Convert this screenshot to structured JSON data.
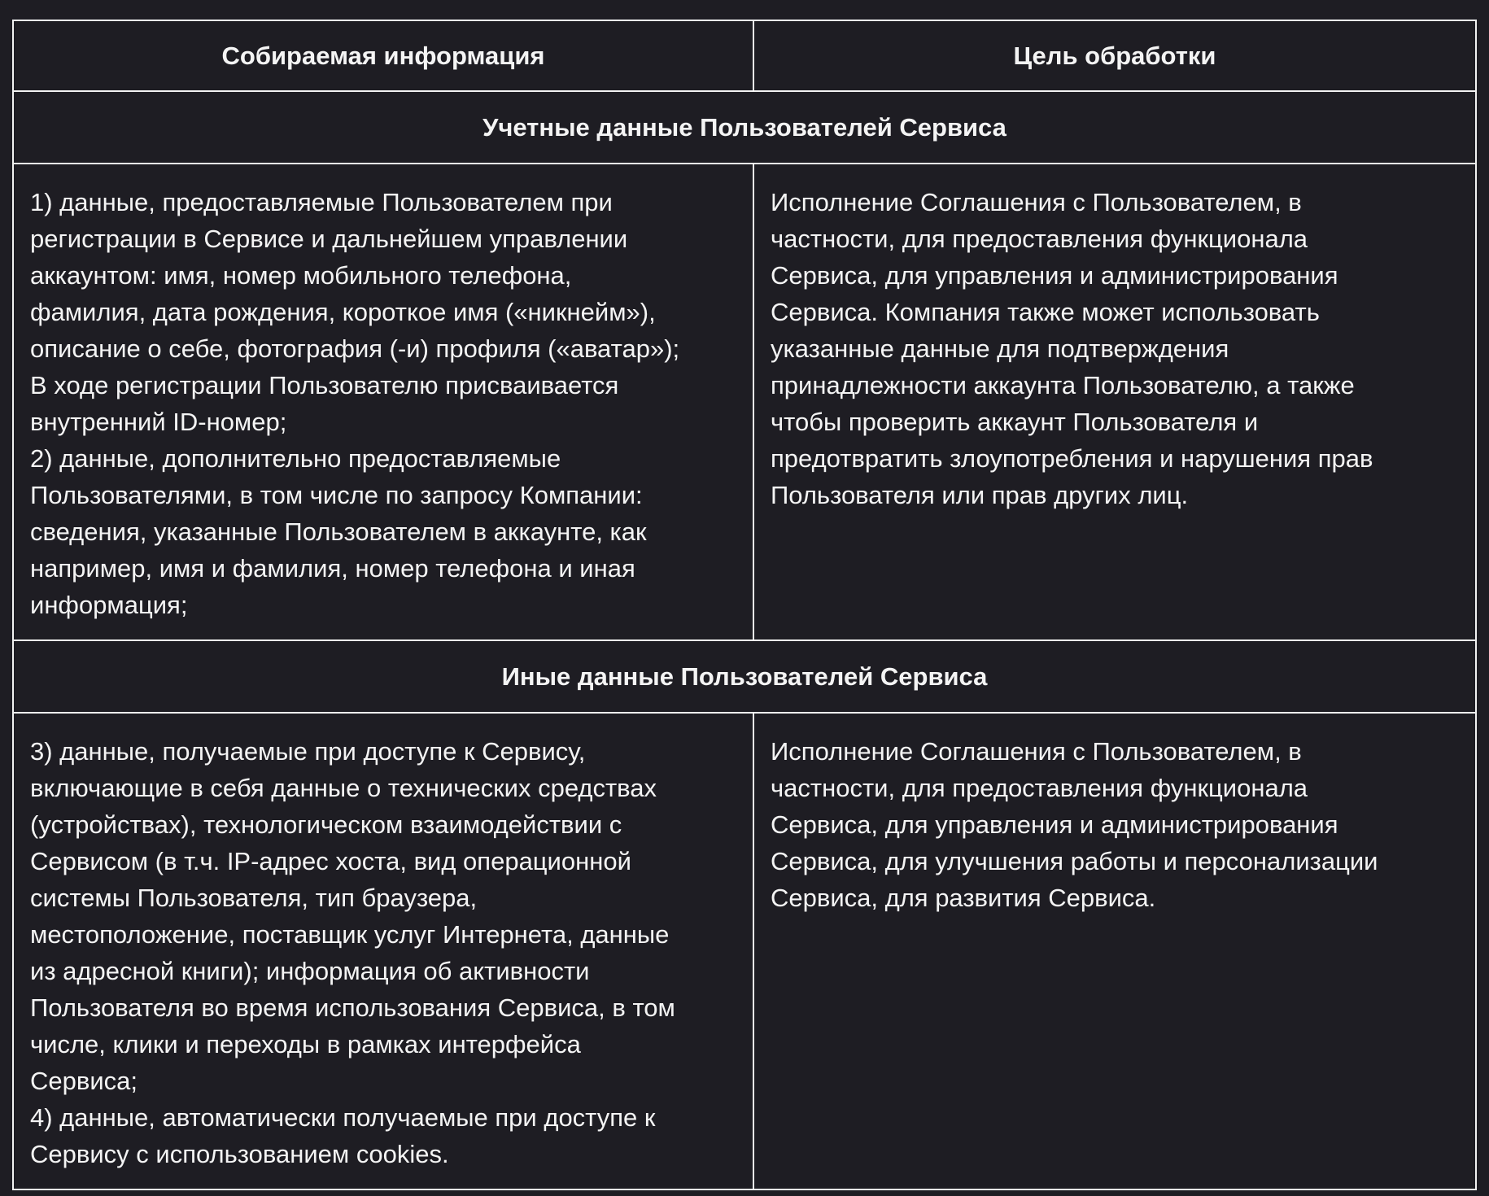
{
  "table": {
    "headers": [
      "Собираемая информация",
      "Цель обработки"
    ],
    "sections": [
      {
        "title": "Учетные данные Пользователей Сервиса",
        "info_lines": [
          "1) данные, предоставляемые Пользователем при",
          "регистрации в Сервисе и дальнейшем управлении",
          "аккаунтом: имя, номер мобильного телефона,",
          "фамилия, дата рождения, короткое имя («никнейм»),",
          "описание о себе, фотография (-и) профиля («аватар»);",
          "В ходе регистрации Пользователю присваивается",
          "внутренний ID-номер;",
          "2) данные, дополнительно предоставляемые",
          "Пользователями, в том числе по запросу Компании:",
          "сведения, указанные Пользователем в аккаунте, как",
          "например, имя и фамилия, номер телефона и иная",
          "информация;"
        ],
        "purpose_lines": [
          "Исполнение Соглашения с Пользователем, в",
          "частности, для предоставления функционала",
          "Сервиса, для управления и администрирования",
          "Сервиса. Компания также может использовать",
          "указанные данные для подтверждения",
          "принадлежности аккаунта Пользователю, а также",
          "чтобы проверить аккаунт Пользователя и",
          "предотвратить злоупотребления и нарушения прав",
          "Пользователя или прав других лиц."
        ]
      },
      {
        "title": "Иные данные Пользователей Сервиса",
        "info_lines": [
          "3) данные, получаемые при доступе к Сервису,",
          "включающие в себя данные о технических средствах",
          "(устройствах), технологическом взаимодействии с",
          "Сервисом (в т.ч. IP-адрес хоста, вид операционной",
          "системы Пользователя, тип браузера,",
          "местоположение, поставщик услуг Интернета, данные",
          "из адресной книги); информация об активности",
          "Пользователя во время использования Сервиса, в том",
          "числе, клики и переходы в рамках интерфейса",
          "Сервиса;",
          "4) данные, автоматически получаемые при доступе к",
          "Сервису с использованием cookies."
        ],
        "purpose_lines": [
          "Исполнение Соглашения с Пользователем, в",
          "частности, для предоставления функционала",
          "Сервиса, для управления и администрирования",
          "Сервиса, для улучшения работы и персонализации",
          "Сервиса, для развития Сервиса."
        ]
      }
    ]
  }
}
